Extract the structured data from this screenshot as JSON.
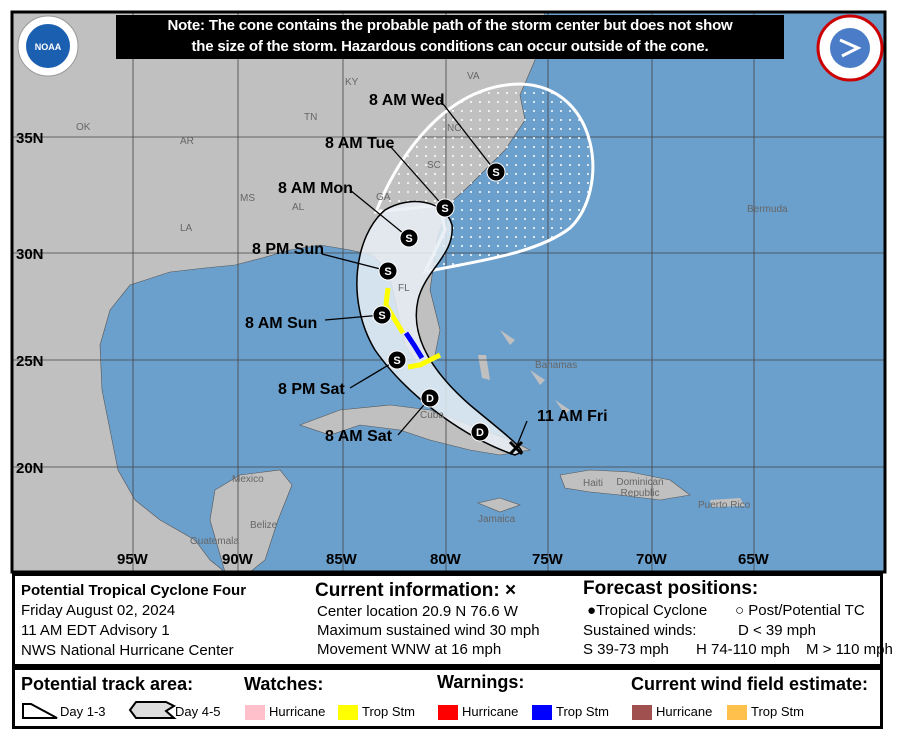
{
  "note": {
    "line1": "Note: The cone contains the probable path of the storm center but does not show",
    "line2": "the size of the storm. Hazardous conditions can occur outside of the cone."
  },
  "logos": {
    "left": "NOAA",
    "right": "NATIONAL WEATHER SERVICE"
  },
  "map": {
    "colors": {
      "ocean": "#6b9fcc",
      "land": "#c0c0c0",
      "cone_fill": "#f0f0f0",
      "ts_watch": "#ffff00",
      "ts_warning": "#0000ff"
    },
    "lon_labels": [
      "95W",
      "90W",
      "85W",
      "80W",
      "75W",
      "70W",
      "65W"
    ],
    "lat_labels": [
      "35N",
      "30N",
      "25N",
      "20N"
    ],
    "place_labels": [
      "KY",
      "VA",
      "OK",
      "AR",
      "TN",
      "NC",
      "SC",
      "GA",
      "MS",
      "AL",
      "LA",
      "FL",
      "Bermuda",
      "Bahamas",
      "Cuba",
      "Mexico",
      "Belize",
      "Guatemala",
      "Haiti",
      "Dominican Republic",
      "Jamaica",
      "Puerto Rico"
    ],
    "track": [
      {
        "label": "11 AM Fri",
        "symbol": "x"
      },
      {
        "label": "",
        "symbol": "D"
      },
      {
        "label": "8 AM Sat",
        "symbol": "D"
      },
      {
        "label": "8 PM Sat",
        "symbol": "S"
      },
      {
        "label": "8 AM Sun",
        "symbol": "S"
      },
      {
        "label": "8 PM Sun",
        "symbol": "S"
      },
      {
        "label": "8 AM Mon",
        "symbol": "S"
      },
      {
        "label": "8 AM Tue",
        "symbol": "S"
      },
      {
        "label": "8 AM Wed",
        "symbol": "S"
      }
    ]
  },
  "info": {
    "storm": "Potential Tropical Cyclone Four",
    "date": "Friday August 02, 2024",
    "advisory": "11 AM EDT Advisory 1",
    "center": "NWS National Hurricane Center"
  },
  "current": {
    "title": "Current information: ×",
    "location": "Center location 20.9 N 76.6 W",
    "wind": "Maximum sustained wind 30 mph",
    "movement": "Movement WNW at 16 mph"
  },
  "forecast": {
    "title": "Forecast positions:",
    "tc": "Tropical Cyclone",
    "ptc": "Post/Potential TC",
    "winds": "Sustained winds:",
    "d": "D < 39 mph",
    "s": "S 39-73 mph",
    "h": "H 74-110 mph",
    "m": "M > 110 mph"
  },
  "legend": {
    "track_title": "Potential track area:",
    "day13": "Day 1-3",
    "day45": "Day 4-5",
    "watches": "Watches:",
    "warnings": "Warnings:",
    "wind_field": "Current wind field estimate:",
    "hurricane": "Hurricane",
    "tropstm": "Trop Stm",
    "colors": {
      "hurricane_watch": "#ffc0cb",
      "ts_watch": "#ffff00",
      "hurricane_warning": "#ff0000",
      "ts_warning": "#0000ff",
      "hurricane_wind": "#a0504e",
      "ts_wind": "#ffc04c"
    }
  }
}
